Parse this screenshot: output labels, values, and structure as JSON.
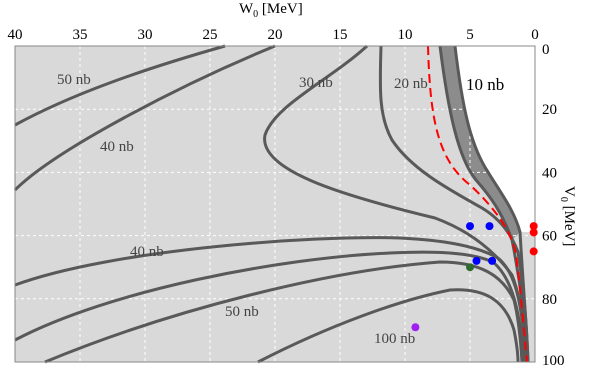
{
  "chart_data": {
    "type": "contour",
    "x_axis": {
      "label": "W",
      "label_sub": "0",
      "label_unit": " [MeV]",
      "position": "top",
      "reversed": true,
      "range": [
        40,
        0
      ],
      "ticks": [
        40,
        35,
        30,
        25,
        20,
        15,
        10,
        5,
        0
      ]
    },
    "y_axis": {
      "label": "V",
      "label_sub": "0",
      "label_unit": " [MeV]",
      "position": "right",
      "reversed": true,
      "range": [
        0,
        100
      ],
      "ticks": [
        0,
        20,
        40,
        60,
        80,
        100
      ]
    },
    "grid": true,
    "colors": {
      "background": "#d9d9d9",
      "allowed_band": "#ffffff",
      "contour": "#595959",
      "band_10nb": "#8c8c8c",
      "reference_curve": "#ff0000"
    },
    "contour_labels": [
      "50 nb",
      "40 nb",
      "30 nb",
      "20 nb",
      "10 nb",
      "40 nb",
      "50 nb",
      "100 nb"
    ],
    "points": [
      {
        "W": 5.0,
        "V": 57,
        "color": "#0000ff"
      },
      {
        "W": 3.5,
        "V": 57,
        "color": "#0000ff"
      },
      {
        "W": 4.5,
        "V": 68,
        "color": "#0000ff"
      },
      {
        "W": 3.3,
        "V": 68,
        "color": "#0000ff"
      },
      {
        "W": 5.0,
        "V": 70,
        "color": "#2e6b2e"
      },
      {
        "W": 0.1,
        "V": 57,
        "color": "#ff0000"
      },
      {
        "W": 0.1,
        "V": 59,
        "color": "#ff0000"
      },
      {
        "W": 0.1,
        "V": 65,
        "color": "#ff0000"
      },
      {
        "W": 9.2,
        "V": 89,
        "color": "#a020f0"
      }
    ]
  }
}
